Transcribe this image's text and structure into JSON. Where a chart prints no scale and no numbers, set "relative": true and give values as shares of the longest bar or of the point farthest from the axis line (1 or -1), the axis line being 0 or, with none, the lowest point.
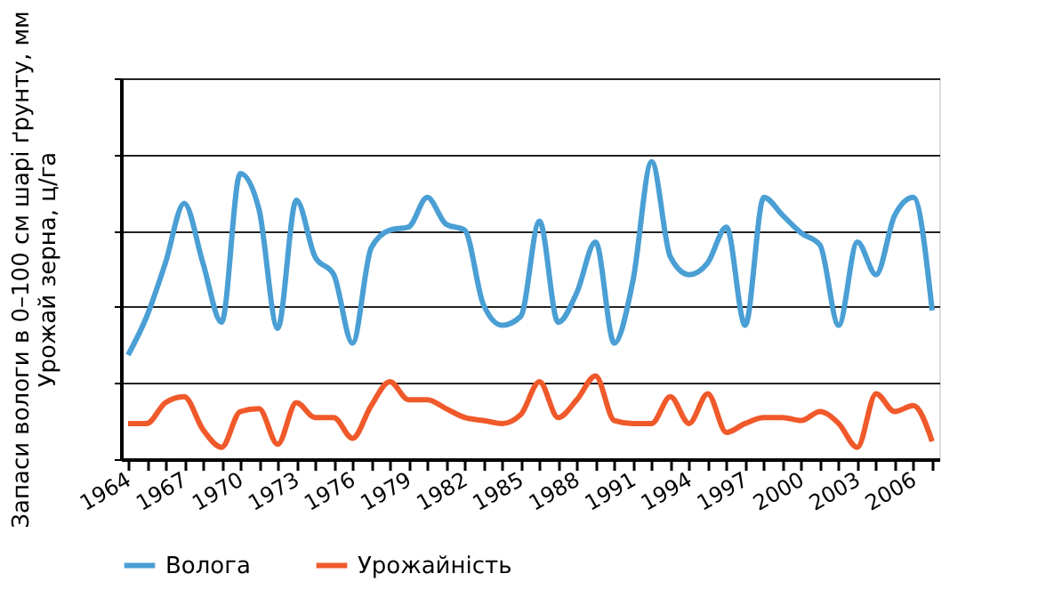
{
  "chart_data": {
    "type": "line",
    "relative": true,
    "ylabel": "Запаси вологи в 0–100 см шарі ґрунту, мм\nУрожай зерна, ц/га",
    "categories": [
      "1964",
      null,
      null,
      "1967",
      null,
      null,
      "1970",
      null,
      null,
      "1973",
      null,
      null,
      "1976",
      null,
      null,
      "1979",
      null,
      null,
      "1982",
      null,
      null,
      "1985",
      null,
      null,
      "1988",
      null,
      null,
      "1991",
      null,
      null,
      "1994",
      null,
      null,
      "1997",
      null,
      null,
      "2000",
      null,
      null,
      "2003",
      null,
      null,
      "2006",
      null
    ],
    "series": [
      {
        "name": "Волога",
        "color": "#4a9fd4",
        "values": [
          0.35,
          0.48,
          0.66,
          0.86,
          0.66,
          0.46,
          0.96,
          0.84,
          0.44,
          0.87,
          0.68,
          0.62,
          0.39,
          0.71,
          0.77,
          0.78,
          0.88,
          0.79,
          0.77,
          0.52,
          0.45,
          0.48,
          0.8,
          0.46,
          0.56,
          0.73,
          0.39,
          0.6,
          1.0,
          0.68,
          0.62,
          0.66,
          0.78,
          0.45,
          0.88,
          0.82,
          0.76,
          0.72,
          0.45,
          0.73,
          0.62,
          0.82,
          0.88,
          0.5
        ]
      },
      {
        "name": "Урожайність",
        "color": "#f0592a",
        "values": [
          0.12,
          0.12,
          0.19,
          0.21,
          0.1,
          0.04,
          0.16,
          0.17,
          0.05,
          0.19,
          0.14,
          0.14,
          0.07,
          0.18,
          0.26,
          0.2,
          0.2,
          0.17,
          0.14,
          0.13,
          0.12,
          0.15,
          0.26,
          0.14,
          0.2,
          0.28,
          0.13,
          0.12,
          0.12,
          0.21,
          0.12,
          0.22,
          0.09,
          0.12,
          0.14,
          0.14,
          0.13,
          0.16,
          0.12,
          0.04,
          0.22,
          0.16,
          0.18,
          0.06
        ]
      }
    ],
    "grid": "y",
    "legend": "bottom",
    "marker": "none",
    "line_style": "solid"
  }
}
